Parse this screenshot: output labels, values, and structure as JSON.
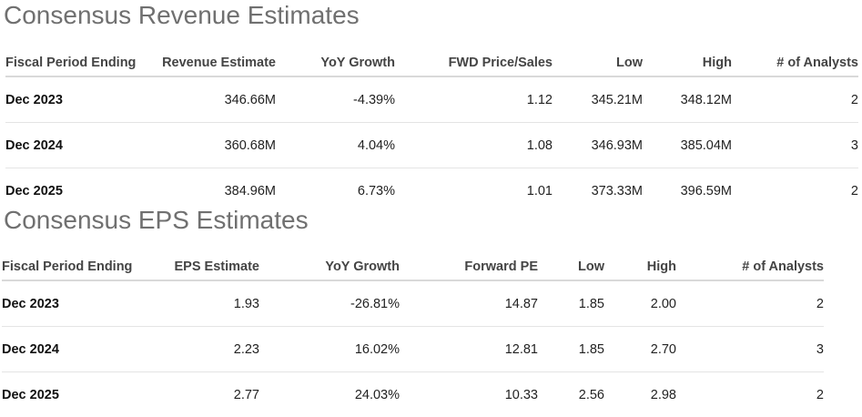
{
  "revenue": {
    "title": "Consensus Revenue Estimates",
    "columns": [
      "Fiscal Period Ending",
      "Revenue Estimate",
      "YoY Growth",
      "FWD Price/Sales",
      "Low",
      "High",
      "# of Analysts"
    ],
    "rows": [
      [
        "Dec 2023",
        "346.66M",
        "-4.39%",
        "1.12",
        "345.21M",
        "348.12M",
        "2"
      ],
      [
        "Dec 2024",
        "360.68M",
        "4.04%",
        "1.08",
        "346.93M",
        "385.04M",
        "3"
      ],
      [
        "Dec 2025",
        "384.96M",
        "6.73%",
        "1.01",
        "373.33M",
        "396.59M",
        "2"
      ]
    ]
  },
  "eps": {
    "title": "Consensus EPS Estimates",
    "columns": [
      "Fiscal Period Ending",
      "EPS Estimate",
      "YoY Growth",
      "Forward PE",
      "Low",
      "High",
      "# of Analysts"
    ],
    "rows": [
      [
        "Dec 2023",
        "1.93",
        "-26.81%",
        "14.87",
        "1.85",
        "2.00",
        "2"
      ],
      [
        "Dec 2024",
        "2.23",
        "16.02%",
        "12.81",
        "1.85",
        "2.70",
        "3"
      ],
      [
        "Dec 2025",
        "2.77",
        "24.03%",
        "10.33",
        "2.56",
        "2.98",
        "2"
      ]
    ]
  }
}
